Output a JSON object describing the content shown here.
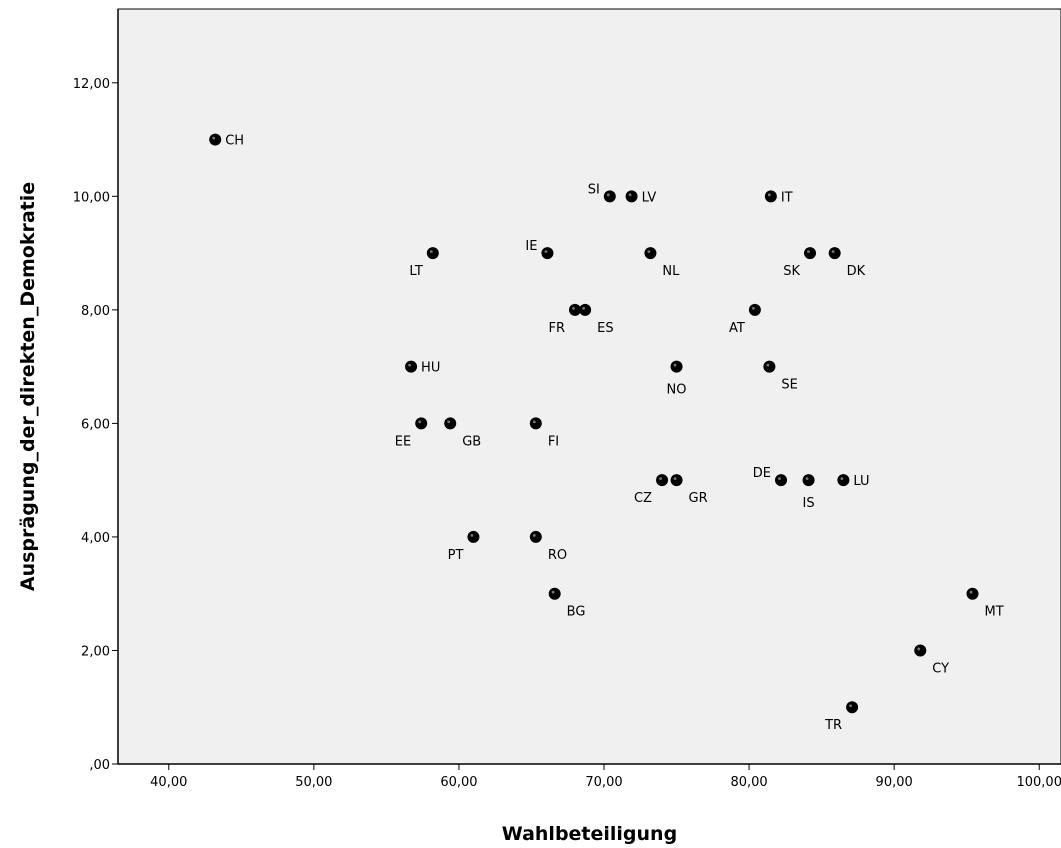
{
  "chart_data": {
    "type": "scatter",
    "title": "",
    "xlabel": "Wahlbeteiligung",
    "ylabel": "Ausprägung_der_direkten_Demokratie",
    "xlim": [
      36.5,
      101.5
    ],
    "ylim": [
      0,
      13.3
    ],
    "x_ticks": [
      40,
      50,
      60,
      70,
      80,
      90,
      100
    ],
    "x_tick_labels": [
      "40,00",
      "50,00",
      "60,00",
      "70,00",
      "80,00",
      "90,00",
      "100,00"
    ],
    "y_ticks": [
      0,
      2,
      4,
      6,
      8,
      10,
      12
    ],
    "y_tick_labels": [
      ",00",
      "2,00",
      "4,00",
      "6,00",
      "8,00",
      "10,00",
      "12,00"
    ],
    "grid": false,
    "plot_background": "#f0f0f0",
    "marker_color": "#000000",
    "points": [
      {
        "label": "CH",
        "x": 43.2,
        "y": 11,
        "label_pos": "right"
      },
      {
        "label": "SI",
        "x": 70.4,
        "y": 10,
        "label_pos": "upper-left"
      },
      {
        "label": "LV",
        "x": 71.9,
        "y": 10,
        "label_pos": "right"
      },
      {
        "label": "IT",
        "x": 81.5,
        "y": 10,
        "label_pos": "right"
      },
      {
        "label": "LT",
        "x": 58.2,
        "y": 9,
        "label_pos": "below-left"
      },
      {
        "label": "IE",
        "x": 66.1,
        "y": 9,
        "label_pos": "upper-left"
      },
      {
        "label": "NL",
        "x": 73.2,
        "y": 9,
        "label_pos": "below-right"
      },
      {
        "label": "SK",
        "x": 84.2,
        "y": 9,
        "label_pos": "below-left"
      },
      {
        "label": "DK",
        "x": 85.9,
        "y": 9,
        "label_pos": "below-right"
      },
      {
        "label": "FR",
        "x": 68.0,
        "y": 8,
        "label_pos": "below-left"
      },
      {
        "label": "ES",
        "x": 68.7,
        "y": 8,
        "label_pos": "below-right"
      },
      {
        "label": "AT",
        "x": 80.4,
        "y": 8,
        "label_pos": "below-left"
      },
      {
        "label": "HU",
        "x": 56.7,
        "y": 7,
        "label_pos": "right"
      },
      {
        "label": "NO",
        "x": 75.0,
        "y": 7,
        "label_pos": "below"
      },
      {
        "label": "SE",
        "x": 81.4,
        "y": 7,
        "label_pos": "below-right"
      },
      {
        "label": "EE",
        "x": 57.4,
        "y": 6,
        "label_pos": "below-left"
      },
      {
        "label": "GB",
        "x": 59.4,
        "y": 6,
        "label_pos": "below-right"
      },
      {
        "label": "FI",
        "x": 65.3,
        "y": 6,
        "label_pos": "below-right"
      },
      {
        "label": "CZ",
        "x": 74.0,
        "y": 5,
        "label_pos": "below-left"
      },
      {
        "label": "GR",
        "x": 75.0,
        "y": 5,
        "label_pos": "below-right"
      },
      {
        "label": "DE",
        "x": 82.2,
        "y": 5,
        "label_pos": "upper-left"
      },
      {
        "label": "IS",
        "x": 84.1,
        "y": 5,
        "label_pos": "below"
      },
      {
        "label": "LU",
        "x": 86.5,
        "y": 5,
        "label_pos": "right"
      },
      {
        "label": "PT",
        "x": 61.0,
        "y": 4,
        "label_pos": "below-left"
      },
      {
        "label": "RO",
        "x": 65.3,
        "y": 4,
        "label_pos": "below-right"
      },
      {
        "label": "BG",
        "x": 66.6,
        "y": 3,
        "label_pos": "below-right"
      },
      {
        "label": "MT",
        "x": 95.4,
        "y": 3,
        "label_pos": "below-right"
      },
      {
        "label": "CY",
        "x": 91.8,
        "y": 2,
        "label_pos": "below-right"
      },
      {
        "label": "TR",
        "x": 87.1,
        "y": 1,
        "label_pos": "below-left"
      }
    ]
  }
}
